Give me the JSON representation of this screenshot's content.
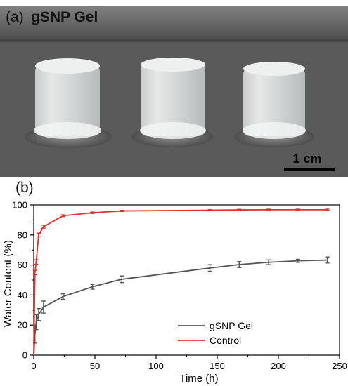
{
  "panel_a": {
    "label": "(a)",
    "title": "gSNP Gel",
    "scale_bar_label": "1 cm"
  },
  "panel_b": {
    "label": "(b)"
  },
  "colors": {
    "gsnp": "#555555",
    "control": "#e8302a",
    "photo_bg": "#5c5c5c"
  },
  "chart_data": {
    "type": "line",
    "xlabel": "Time (h)",
    "ylabel": "Water Content (%)",
    "xlim": [
      0,
      250
    ],
    "ylim": [
      0,
      100
    ],
    "xticks": [
      0,
      50,
      100,
      150,
      200,
      250
    ],
    "yticks": [
      0,
      20,
      40,
      60,
      80,
      100
    ],
    "legend_position": "bottom-right",
    "grid": false,
    "series": [
      {
        "name": "gSNP Gel",
        "color": "#555555",
        "x": [
          0,
          1,
          2,
          4,
          8,
          24,
          48,
          72,
          144,
          168,
          192,
          216,
          240
        ],
        "y": [
          0,
          14,
          22,
          27,
          32,
          39,
          45.5,
          50.5,
          58,
          60.3,
          61.8,
          62.8,
          63.3
        ],
        "err": [
          0,
          6,
          5,
          4,
          4,
          1.8,
          1.6,
          2.2,
          2.2,
          2.0,
          1.6,
          1.0,
          2.0
        ]
      },
      {
        "name": "Control",
        "color": "#e8302a",
        "x": [
          0,
          1,
          2,
          4,
          8,
          24,
          48,
          72,
          144,
          168,
          192,
          216,
          240
        ],
        "y": [
          0,
          55,
          62,
          80,
          85.5,
          92.8,
          94.8,
          96,
          96.5,
          96.7,
          96.8,
          96.8,
          96.8
        ],
        "err": [
          0,
          1.5,
          1.5,
          1.2,
          1.0,
          0.6,
          0.5,
          0.4,
          0.4,
          0.4,
          0.4,
          0.4,
          0.4
        ]
      }
    ]
  }
}
